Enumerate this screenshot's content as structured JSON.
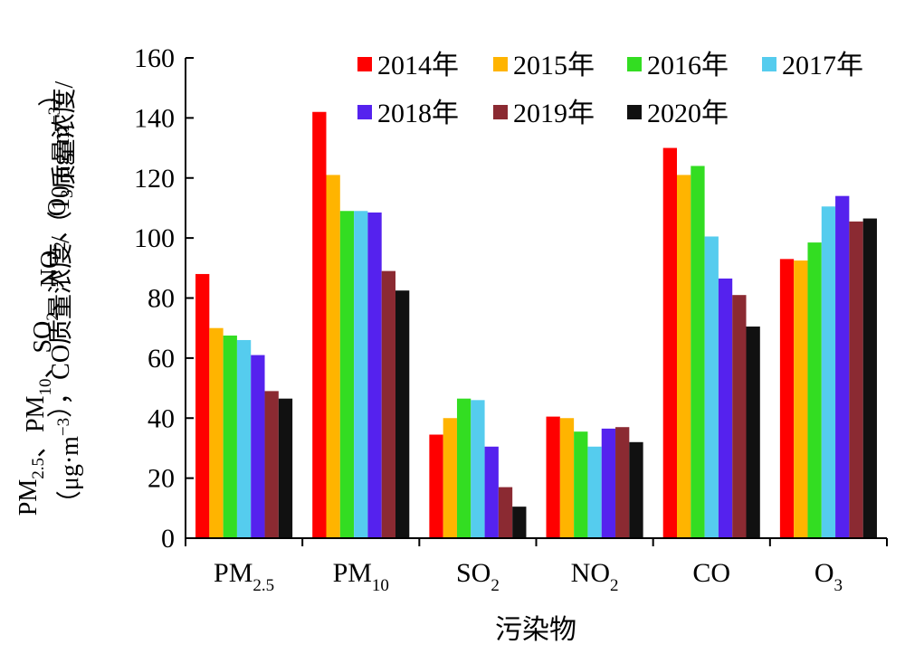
{
  "chart_data": {
    "type": "bar",
    "categories": [
      {
        "base": "PM",
        "sub": "2.5"
      },
      {
        "base": "PM",
        "sub": "10"
      },
      {
        "base": "SO",
        "sub": "2"
      },
      {
        "base": "NO",
        "sub": "2"
      },
      {
        "base": "CO",
        "sub": ""
      },
      {
        "base": "O",
        "sub": "3"
      }
    ],
    "series": [
      {
        "name": "2014年",
        "color": "#ff0000",
        "values": [
          88,
          142,
          34.5,
          40.5,
          130,
          93
        ]
      },
      {
        "name": "2015年",
        "color": "#ffb400",
        "values": [
          70,
          121,
          40,
          40,
          121,
          92.5
        ]
      },
      {
        "name": "2016年",
        "color": "#33dd22",
        "values": [
          67.5,
          109,
          46.5,
          35.5,
          124,
          98.5
        ]
      },
      {
        "name": "2017年",
        "color": "#55ccee",
        "values": [
          66,
          109,
          46,
          30.5,
          100.5,
          110.5
        ]
      },
      {
        "name": "2018年",
        "color": "#5522ee",
        "values": [
          61,
          108.5,
          30.5,
          36.5,
          86.5,
          114
        ]
      },
      {
        "name": "2019年",
        "color": "#8b2a32",
        "values": [
          49,
          89,
          17,
          37,
          81,
          105.5
        ]
      },
      {
        "name": "2020年",
        "color": "#111111",
        "values": [
          46.5,
          82.5,
          10.5,
          32,
          70.5,
          106.5
        ]
      }
    ],
    "ylim": [
      0,
      160
    ],
    "yticks": [
      0,
      20,
      40,
      60,
      80,
      100,
      120,
      140,
      160
    ],
    "xlabel": "污染物",
    "ylabel_line1": [
      {
        "t": "PM"
      },
      {
        "t": "2.5",
        "sub": true
      },
      {
        "t": "、PM"
      },
      {
        "t": "10",
        "sub": true
      },
      {
        "t": "、SO"
      },
      {
        "t": "2",
        "sub": true
      },
      {
        "t": "、NO"
      },
      {
        "t": "2",
        "sub": true
      },
      {
        "t": "、O"
      },
      {
        "t": "3",
        "sub": true
      },
      {
        "t": "质量浓度/"
      }
    ],
    "ylabel_line2": [
      {
        "t": "（μg·m"
      },
      {
        "t": "−3",
        "sup": true
      },
      {
        "t": "），CO质量浓度/（10 μg·m"
      },
      {
        "t": "−3",
        "sup": true
      },
      {
        "t": "）"
      }
    ],
    "legend_position": "top-right",
    "grid": false
  }
}
